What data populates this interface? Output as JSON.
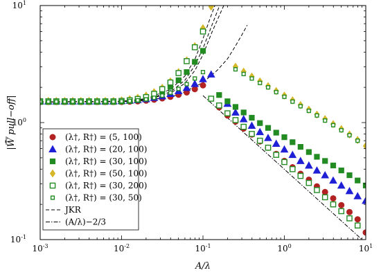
{
  "chart_data": {
    "type": "scatter",
    "xscale": "log",
    "yscale": "log",
    "xlim": [
      0.001,
      10
    ],
    "ylim": [
      0.1,
      10
    ],
    "xlabel": "A/λ",
    "ylabel": "|W̄ pull−off|",
    "x_ticks": [
      {
        "value": 0.001,
        "base": "10",
        "exp": "-3"
      },
      {
        "value": 0.01,
        "base": "10",
        "exp": "-2"
      },
      {
        "value": 0.1,
        "base": "10",
        "exp": "-1"
      },
      {
        "value": 1,
        "base": "10",
        "exp": "0"
      },
      {
        "value": 10,
        "base": "10",
        "exp": "1"
      }
    ],
    "y_ticks": [
      {
        "value": 0.1,
        "base": "10",
        "exp": "-1"
      },
      {
        "value": 1,
        "base": "10",
        "exp": "0"
      },
      {
        "value": 10,
        "base": "10",
        "exp": "1"
      }
    ],
    "legend_position": "bottom-left",
    "series": [
      {
        "name": "(λ†, R†) = (5, 100)",
        "marker": "circle",
        "color": "#b22222",
        "filled": true,
        "x": [
          0.001,
          0.00126,
          0.00158,
          0.002,
          0.00251,
          0.00316,
          0.00398,
          0.00501,
          0.00631,
          0.00794,
          0.01,
          0.0126,
          0.0158,
          0.02,
          0.0251,
          0.0316,
          0.0398,
          0.0501,
          0.0631,
          0.0794,
          0.1,
          0.158,
          0.2,
          0.251,
          0.316,
          0.398,
          0.501,
          0.631,
          0.794,
          1,
          1.26,
          1.58,
          2,
          2.51,
          3.16,
          3.98,
          5.01,
          6.31,
          7.94,
          10
        ],
        "y": [
          1.5,
          1.5,
          1.5,
          1.5,
          1.5,
          1.5,
          1.5,
          1.5,
          1.5,
          1.5,
          1.5,
          1.51,
          1.52,
          1.54,
          1.57,
          1.61,
          1.66,
          1.73,
          1.81,
          1.93,
          2.08,
          1.35,
          1.15,
          1.02,
          0.89,
          0.79,
          0.69,
          0.61,
          0.54,
          0.47,
          0.415,
          0.365,
          0.325,
          0.285,
          0.255,
          0.225,
          0.197,
          0.172,
          0.149,
          0.115
        ]
      },
      {
        "name": "(λ†, R†) = (20, 100)",
        "marker": "triangle",
        "color": "#1f1fd6",
        "filled": true,
        "x": [
          0.001,
          0.00126,
          0.00158,
          0.002,
          0.00251,
          0.00316,
          0.00398,
          0.00501,
          0.00631,
          0.00794,
          0.01,
          0.0126,
          0.0158,
          0.02,
          0.0251,
          0.0316,
          0.0398,
          0.0501,
          0.0631,
          0.0794,
          0.1,
          0.126,
          0.2,
          0.251,
          0.316,
          0.398,
          0.501,
          0.631,
          0.794,
          1,
          1.26,
          1.58,
          2,
          2.51,
          3.16,
          3.98,
          5.01,
          6.31,
          7.94,
          10
        ],
        "y": [
          1.52,
          1.52,
          1.52,
          1.52,
          1.52,
          1.52,
          1.52,
          1.52,
          1.52,
          1.52,
          1.53,
          1.54,
          1.56,
          1.59,
          1.63,
          1.68,
          1.76,
          1.86,
          1.98,
          2.14,
          2.35,
          2.58,
          1.45,
          1.22,
          1.07,
          0.94,
          0.83,
          0.74,
          0.66,
          0.59,
          0.53,
          0.47,
          0.43,
          0.39,
          0.355,
          0.32,
          0.29,
          0.26,
          0.235,
          0.215
        ]
      },
      {
        "name": "(λ†, R†) = (30, 100)",
        "marker": "square",
        "color": "#228b22",
        "filled": true,
        "x": [
          0.001,
          0.00126,
          0.00158,
          0.002,
          0.00251,
          0.00316,
          0.00398,
          0.00501,
          0.00631,
          0.00794,
          0.01,
          0.0126,
          0.0158,
          0.02,
          0.0251,
          0.0316,
          0.0398,
          0.0501,
          0.0631,
          0.0794,
          0.1,
          0.158,
          0.2,
          0.251,
          0.316,
          0.398,
          0.501,
          0.631,
          0.794,
          1,
          1.26,
          1.58,
          2,
          2.51,
          3.16,
          3.98,
          5.01,
          6.31,
          7.94,
          10
        ],
        "y": [
          1.5,
          1.5,
          1.5,
          1.5,
          1.5,
          1.5,
          1.5,
          1.5,
          1.5,
          1.5,
          1.51,
          1.53,
          1.56,
          1.61,
          1.7,
          1.83,
          2.02,
          2.3,
          2.7,
          3.3,
          4.1,
          1.72,
          1.52,
          1.36,
          1.22,
          1.1,
          0.99,
          0.9,
          0.82,
          0.75,
          0.68,
          0.62,
          0.56,
          0.51,
          0.47,
          0.43,
          0.39,
          0.355,
          0.32,
          0.29
        ]
      },
      {
        "name": "(λ†, R†) = (50, 100)",
        "marker": "diamond",
        "color": "#d4b82a",
        "filled": true,
        "x": [
          0.001,
          0.00126,
          0.00158,
          0.002,
          0.00251,
          0.00316,
          0.00398,
          0.00501,
          0.00631,
          0.00794,
          0.01,
          0.0126,
          0.0158,
          0.02,
          0.0251,
          0.0316,
          0.0398,
          0.0501,
          0.0631,
          0.0794,
          0.1,
          0.126,
          0.251,
          0.316,
          0.398,
          0.501,
          0.631,
          0.794,
          1,
          1.26,
          1.58,
          2,
          2.51,
          3.16,
          3.98,
          5.01,
          6.31,
          7.94,
          10
        ],
        "y": [
          1.53,
          1.53,
          1.53,
          1.53,
          1.53,
          1.53,
          1.53,
          1.53,
          1.53,
          1.53,
          1.55,
          1.58,
          1.63,
          1.7,
          1.82,
          1.98,
          2.25,
          2.7,
          3.4,
          4.5,
          6.4,
          9.8,
          3.0,
          2.72,
          2.47,
          2.25,
          2.05,
          1.86,
          1.7,
          1.55,
          1.41,
          1.29,
          1.17,
          1.07,
          0.97,
          0.88,
          0.79,
          0.71,
          0.63
        ]
      },
      {
        "name": "(λ†, R†) = (30, 200)",
        "marker": "square",
        "color": "#228b22",
        "filled": false,
        "x": [
          0.001,
          0.00126,
          0.00158,
          0.002,
          0.00251,
          0.00316,
          0.00398,
          0.00501,
          0.00631,
          0.00794,
          0.01,
          0.0126,
          0.0158,
          0.02,
          0.0251,
          0.0316,
          0.0398,
          0.0501,
          0.0631,
          0.0794,
          0.1,
          0.126,
          0.158,
          0.2,
          0.251,
          0.316,
          0.398,
          0.501,
          0.631,
          0.794,
          1,
          1.26,
          1.58,
          2,
          2.51,
          3.16,
          3.98,
          5.01,
          6.31,
          7.94
        ],
        "y": [
          1.52,
          1.52,
          1.52,
          1.52,
          1.52,
          1.52,
          1.52,
          1.52,
          1.52,
          1.52,
          1.53,
          1.55,
          1.59,
          1.65,
          1.76,
          1.93,
          2.2,
          2.65,
          3.35,
          4.4,
          6.0,
          1.6,
          1.4,
          1.2,
          1.05,
          0.92,
          0.8,
          0.7,
          0.61,
          0.53,
          0.46,
          0.4,
          0.35,
          0.305,
          0.265,
          0.23,
          0.2,
          0.175,
          0.152,
          0.132
        ]
      },
      {
        "name": "(λ†, R†) = (30, 50)",
        "marker": "square",
        "color": "#228b22",
        "filled": false,
        "small": true,
        "x": [
          0.001,
          0.00126,
          0.00158,
          0.002,
          0.00251,
          0.00316,
          0.00398,
          0.00501,
          0.00631,
          0.00794,
          0.01,
          0.0126,
          0.0158,
          0.02,
          0.0251,
          0.0316,
          0.0398,
          0.0501,
          0.0631,
          0.0794,
          0.1,
          0.251,
          0.316,
          0.398,
          0.501,
          0.631,
          0.794,
          1,
          1.26,
          1.58,
          2,
          2.51,
          3.16,
          3.98,
          5.01,
          6.31,
          7.94
        ],
        "y": [
          1.51,
          1.51,
          1.51,
          1.51,
          1.51,
          1.51,
          1.51,
          1.51,
          1.51,
          1.51,
          1.52,
          1.53,
          1.55,
          1.58,
          1.63,
          1.7,
          1.8,
          1.94,
          2.13,
          2.38,
          2.7,
          2.85,
          2.6,
          2.38,
          2.18,
          2.0,
          1.82,
          1.66,
          1.51,
          1.38,
          1.26,
          1.15,
          1.04,
          0.95,
          0.86,
          0.78,
          0.7
        ]
      }
    ],
    "reference_lines": [
      {
        "name": "JKR",
        "style": "dashed",
        "curves": [
          {
            "x": [
              0.001,
              0.01,
              0.02,
              0.04,
              0.06,
              0.08,
              0.1,
              0.12,
              0.14
            ],
            "y": [
              1.5,
              1.52,
              1.6,
              1.92,
              2.5,
              3.5,
              5.2,
              7.5,
              10
            ]
          },
          {
            "x": [
              0.001,
              0.01,
              0.02,
              0.04,
              0.06,
              0.08,
              0.1,
              0.13,
              0.16
            ],
            "y": [
              1.5,
              1.52,
              1.58,
              1.83,
              2.3,
              3.1,
              4.3,
              6.9,
              10
            ]
          },
          {
            "x": [
              0.001,
              0.01,
              0.02,
              0.04,
              0.06,
              0.08,
              0.1,
              0.13,
              0.18
            ],
            "y": [
              1.5,
              1.52,
              1.57,
              1.78,
              2.17,
              2.8,
              3.8,
              6.0,
              10
            ]
          },
          {
            "x": [
              0.001,
              0.01,
              0.02,
              0.05,
              0.1,
              0.15,
              0.2,
              0.25,
              0.3,
              0.35
            ],
            "y": [
              1.5,
              1.51,
              1.54,
              1.72,
              2.2,
              2.8,
              3.5,
              4.5,
              5.6,
              6.8
            ]
          }
        ]
      },
      {
        "name": "(A/λ)−2/3",
        "style": "dashdot",
        "curves": [
          {
            "x": [
              0.1,
              9.0
            ],
            "y": [
              1.7,
              0.1
            ]
          }
        ]
      }
    ],
    "legend": [
      {
        "label": "(λ†, R†) = (5, 100)",
        "marker": "circle",
        "color": "#b22222",
        "filled": true
      },
      {
        "label": "(λ†, R†) = (20, 100)",
        "marker": "triangle",
        "color": "#1f1fd6",
        "filled": true
      },
      {
        "label": "(λ†, R†) = (30, 100)",
        "marker": "square",
        "color": "#228b22",
        "filled": true
      },
      {
        "label": "(λ†, R†) = (50, 100)",
        "marker": "diamond",
        "color": "#d4b82a",
        "filled": true
      },
      {
        "label": "(λ†, R†) = (30, 200)",
        "marker": "square",
        "color": "#228b22",
        "filled": false
      },
      {
        "label": "(λ†, R†) = (30, 50)",
        "marker": "square",
        "color": "#228b22",
        "filled": false,
        "small": true
      },
      {
        "label": "JKR",
        "line": "dashed"
      },
      {
        "label": "(A/λ)−2/3",
        "line": "dashdot"
      }
    ]
  }
}
